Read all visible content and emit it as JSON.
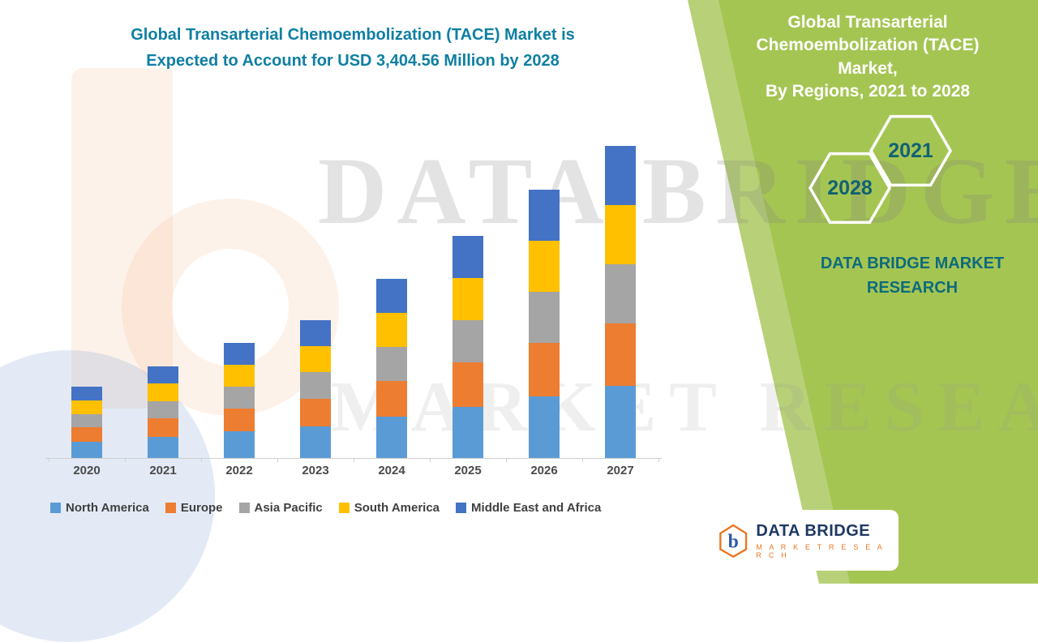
{
  "colors": {
    "green_panel": "#A5C553",
    "teal_text": "#0F7FA3",
    "axis_gray": "#cfcfcf",
    "logo_orange": "#E87722",
    "logo_navy": "#1F3864"
  },
  "title": {
    "line1": "Global Transarterial Chemoembolization (TACE) Market is",
    "line2": "Expected to Account for USD 3,404.56 Million by 2028"
  },
  "watermark": {
    "line1": "DATA BRIDGE",
    "line2": "MARKET RESEARCH"
  },
  "right_panel": {
    "heading_line1": "Global Transarterial",
    "heading_line2": "Chemoembolization (TACE) Market,",
    "heading_line3": "By Regions, 2021 to 2028",
    "hexagons": [
      {
        "year": "2028"
      },
      {
        "year": "2021"
      }
    ],
    "brand_line1": "DATA BRIDGE MARKET",
    "brand_line2": "RESEARCH"
  },
  "logo_card": {
    "letter": "b",
    "name": "DATA BRIDGE",
    "tagline": "M A R K E T   R E S E A R C H"
  },
  "chart_data": {
    "type": "bar",
    "stacked": true,
    "title": "Global Transarterial Chemoembolization (TACE) Market is Expected to Account for USD 3,404.56 Million by 2028",
    "xlabel": "",
    "ylabel": "",
    "units": "USD Million",
    "values_estimated": true,
    "y_axis_visible": false,
    "grid": false,
    "legend_position": "bottom",
    "categories": [
      "2020",
      "2021",
      "2022",
      "2023",
      "2024",
      "2025",
      "2026",
      "2027"
    ],
    "series": [
      {
        "name": "North America",
        "color": "#5B9BD5",
        "values": [
          161,
          208,
          260,
          313,
          407,
          504,
          607,
          707
        ]
      },
      {
        "name": "Europe",
        "color": "#ED7D31",
        "values": [
          140,
          181,
          226,
          272,
          354,
          438,
          528,
          615
        ]
      },
      {
        "name": "Asia Pacific",
        "color": "#A5A5A5",
        "values": [
          133,
          172,
          215,
          258,
          336,
          416,
          502,
          584
        ]
      },
      {
        "name": "South America",
        "color": "#FFC000",
        "values": [
          133,
          172,
          215,
          258,
          336,
          416,
          502,
          584
        ]
      },
      {
        "name": "Middle East and Africa",
        "color": "#4472C4",
        "values": [
          133,
          172,
          215,
          258,
          336,
          416,
          502,
          585
        ]
      }
    ],
    "totals_estimated": [
      700,
      905,
      1131,
      1359,
      1769,
      2190,
      2641,
      3075
    ]
  }
}
